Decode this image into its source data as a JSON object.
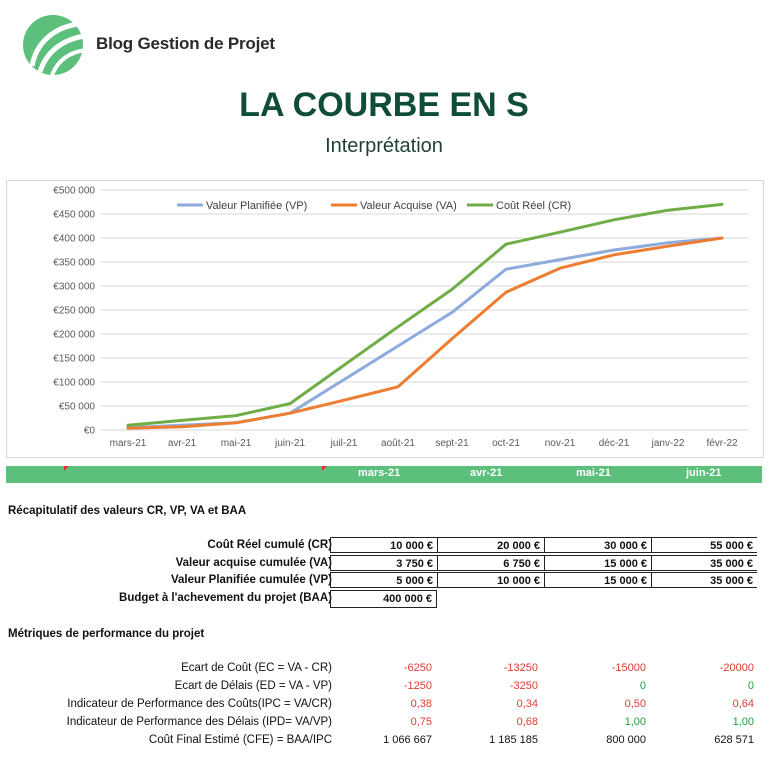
{
  "brand": {
    "name": "Blog Gestion de Projet"
  },
  "header": {
    "title": "LA COURBE EN S",
    "subtitle": "Interprétation"
  },
  "colors": {
    "vp": "#8faadc",
    "va": "#ed7d31",
    "cr": "#70ad47",
    "title": "#0f4d3a",
    "bar": "#5cbf7b"
  },
  "chart_data": {
    "type": "line",
    "categories": [
      "mars-21",
      "avr-21",
      "mai-21",
      "juin-21",
      "juil-21",
      "août-21",
      "sept-21",
      "oct-21",
      "nov-21",
      "déc-21",
      "janv-22",
      "févr-22"
    ],
    "yticks": [
      "€0",
      "€50 000",
      "€100 000",
      "€150 000",
      "€200 000",
      "€250 000",
      "€300 000",
      "€350 000",
      "€400 000",
      "€450 000",
      "€500 000"
    ],
    "ylim": [
      0,
      500000
    ],
    "legend_position": "top",
    "series": [
      {
        "name": "Valeur Planifiée (VP)",
        "key": "vp",
        "values": [
          5000,
          10000,
          15000,
          35000,
          105000,
          175000,
          245000,
          335000,
          355000,
          375000,
          390000,
          400000
        ]
      },
      {
        "name": "Valeur Acquise (VA)",
        "key": "va",
        "values": [
          3750,
          6750,
          15000,
          35000,
          62000,
          90000,
          190000,
          287000,
          337000,
          365000,
          383000,
          400000
        ]
      },
      {
        "name": "Coût Réel (CR)",
        "key": "cr",
        "values": [
          10000,
          20000,
          30000,
          55000,
          135000,
          215000,
          293000,
          387000,
          412000,
          438000,
          458000,
          470000
        ]
      }
    ]
  },
  "timeline": {
    "months": [
      "mars-21",
      "avr-21",
      "mai-21",
      "juin-21"
    ]
  },
  "summary": {
    "title": "Récapitulatif des valeurs CR, VP, VA et BAA",
    "rows": [
      {
        "label": "Coût Réel cumulé  (CR)",
        "values": [
          "10 000 €",
          "20 000 €",
          "30 000 €",
          "55 000 €"
        ]
      },
      {
        "label": "Valeur acquise cumulée (VA)",
        "values": [
          "3 750 €",
          "6 750 €",
          "15 000 €",
          "35 000 €"
        ]
      },
      {
        "label": "Valeur Planifiée cumulée (VP)",
        "values": [
          "5 000 €",
          "10 000 €",
          "15 000 €",
          "35 000 €"
        ]
      }
    ],
    "baa": {
      "label": "Budget à l'achevement du projet (BAA)",
      "value": "400 000 €"
    }
  },
  "metrics": {
    "title": "Métriques de performance du projet",
    "rows": [
      {
        "label": "Ecart de Coût (EC = VA - CR)",
        "values": [
          "-6250",
          "-13250",
          "-15000",
          "-20000"
        ],
        "colors": [
          "red",
          "red",
          "red",
          "red"
        ]
      },
      {
        "label": "Ecart de Délais (ED = VA - VP)",
        "values": [
          "-1250",
          "-3250",
          "0",
          "0"
        ],
        "colors": [
          "red",
          "red",
          "green",
          "green"
        ]
      },
      {
        "label": "Indicateur de Performance des Coûts(IPC = VA/CR)",
        "values": [
          "0,38",
          "0,34",
          "0,50",
          "0,64"
        ],
        "colors": [
          "red",
          "red",
          "red",
          "red"
        ]
      },
      {
        "label": "Indicateur de Performance des Délais (IPD= VA/VP)",
        "values": [
          "0,75",
          "0,68",
          "1,00",
          "1,00"
        ],
        "colors": [
          "red",
          "red",
          "green",
          "green"
        ]
      },
      {
        "label": "Coût Final Estimé (CFE) = BAA/IPC",
        "values": [
          "1 066 667",
          "1 185 185",
          "800 000",
          "628 571"
        ],
        "colors": [
          "black",
          "black",
          "black",
          "black"
        ]
      }
    ]
  }
}
